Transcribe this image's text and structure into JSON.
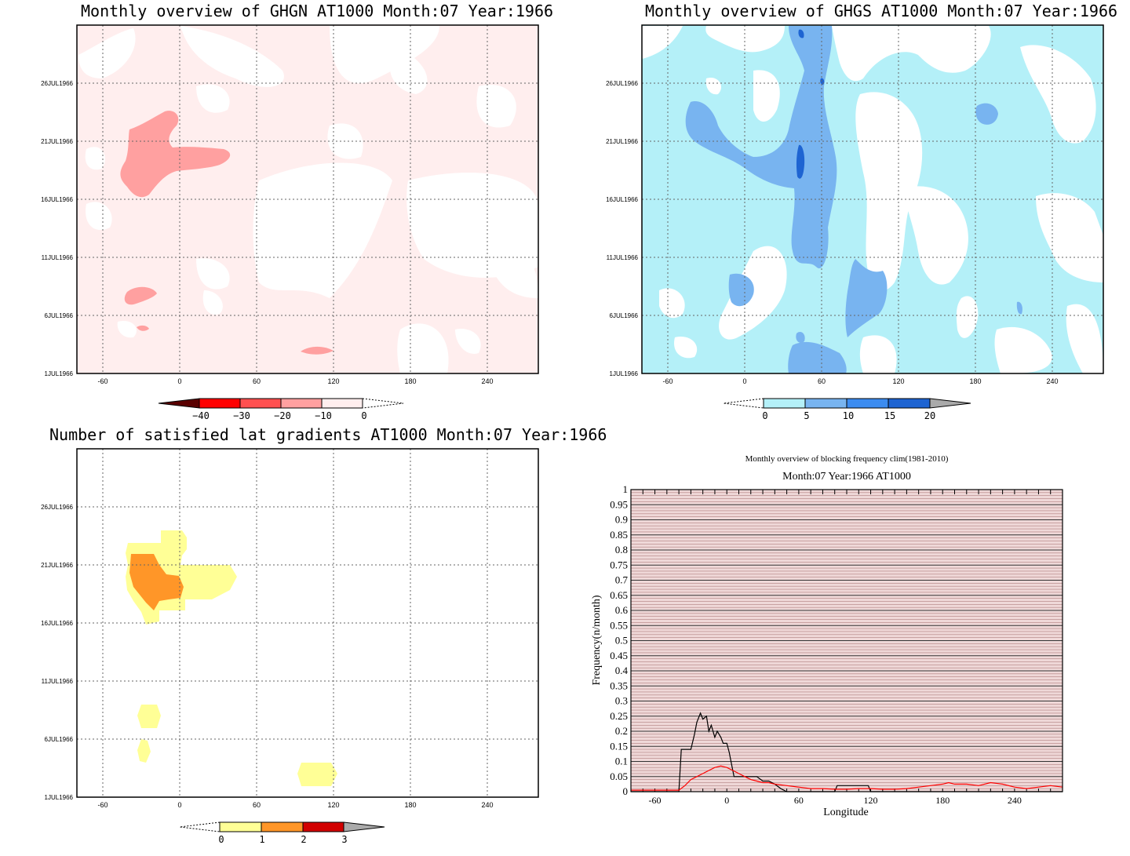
{
  "panels": {
    "ghgn": {
      "title": "Monthly overview of GHGN AT1000 Month:07 Year:1966",
      "colorbar_ticks": [
        "−40",
        "−30",
        "−20",
        "−10",
        "0"
      ],
      "colors": [
        "#5a0000",
        "#ff0000",
        "#ff5050",
        "#ffa0a0",
        "#ffeeee"
      ]
    },
    "ghgs": {
      "title": "Monthly overview of GHGS AT1000 Month:07 Year:1966",
      "colorbar_ticks": [
        "0",
        "5",
        "10",
        "15",
        "20"
      ],
      "colors": [
        "#b4f0f8",
        "#78b4f0",
        "#3c8cf0",
        "#1e64d2",
        "#aaaaaa"
      ]
    },
    "grad": {
      "title": "Number of satisfied lat gradients AT1000 Month:07 Year:1966",
      "colorbar_ticks": [
        "0",
        "1",
        "2",
        "3"
      ],
      "colors": [
        "#ffff96",
        "#ff9628",
        "#d20000",
        "#aaaaaa"
      ]
    }
  },
  "map_axes": {
    "x_ticks": [
      "-60",
      "0",
      "60",
      "120",
      "180",
      "240"
    ],
    "y_ticks": [
      "1JUL1966",
      "6JUL1966",
      "11JUL1966",
      "16JUL1966",
      "21JUL1966",
      "26JUL1966"
    ]
  },
  "chart_data": {
    "type": "line",
    "suptitle": "Monthly overview of blocking frequency clim(1981-2010)",
    "title": "Month:07 Year:1966  AT1000",
    "xlabel": "Longitude",
    "ylabel": "Frequency(n/month)",
    "xlim": [
      -80,
      280
    ],
    "ylim": [
      0,
      1
    ],
    "x_tick_labels": [
      "-60",
      "0",
      "60",
      "120",
      "180",
      "240"
    ],
    "y_tick_labels": [
      "0",
      "0.05",
      "0.1",
      "0.15",
      "0.2",
      "0.25",
      "0.3",
      "0.35",
      "0.4",
      "0.45",
      "0.5",
      "0.55",
      "0.6",
      "0.65",
      "0.7",
      "0.75",
      "0.8",
      "0.85",
      "0.9",
      "0.95",
      "1"
    ],
    "series": [
      {
        "color": "#000000",
        "x": [
          -80,
          -40,
          -38,
          -30,
          -27,
          -25,
          -22,
          -20,
          -17,
          -15,
          -13,
          -10,
          -8,
          -5,
          -3,
          0,
          2,
          4,
          6,
          20,
          25,
          30,
          35,
          40,
          45,
          50,
          90,
          92,
          118,
          120,
          280
        ],
        "y": [
          0,
          0,
          0.14,
          0.14,
          0.19,
          0.23,
          0.26,
          0.24,
          0.25,
          0.2,
          0.22,
          0.18,
          0.2,
          0.18,
          0.16,
          0.16,
          0.13,
          0.09,
          0.05,
          0.05,
          0.05,
          0.035,
          0.035,
          0.025,
          0.01,
          0,
          0,
          0.02,
          0.02,
          0,
          0
        ]
      },
      {
        "color": "#ff0000",
        "x": [
          -80,
          -40,
          -35,
          -30,
          -25,
          -20,
          -15,
          -10,
          -5,
          0,
          5,
          10,
          15,
          20,
          25,
          30,
          35,
          40,
          50,
          60,
          70,
          80,
          90,
          100,
          110,
          120,
          130,
          140,
          150,
          160,
          170,
          180,
          185,
          190,
          200,
          210,
          220,
          230,
          240,
          250,
          260,
          270,
          280
        ],
        "y": [
          0.005,
          0.005,
          0.02,
          0.04,
          0.05,
          0.06,
          0.07,
          0.08,
          0.085,
          0.08,
          0.07,
          0.06,
          0.05,
          0.04,
          0.035,
          0.03,
          0.03,
          0.025,
          0.02,
          0.015,
          0.01,
          0.01,
          0.008,
          0.008,
          0.01,
          0.01,
          0.008,
          0.008,
          0.01,
          0.015,
          0.02,
          0.025,
          0.03,
          0.025,
          0.025,
          0.02,
          0.03,
          0.025,
          0.015,
          0.01,
          0.015,
          0.02,
          0.015
        ]
      }
    ]
  }
}
